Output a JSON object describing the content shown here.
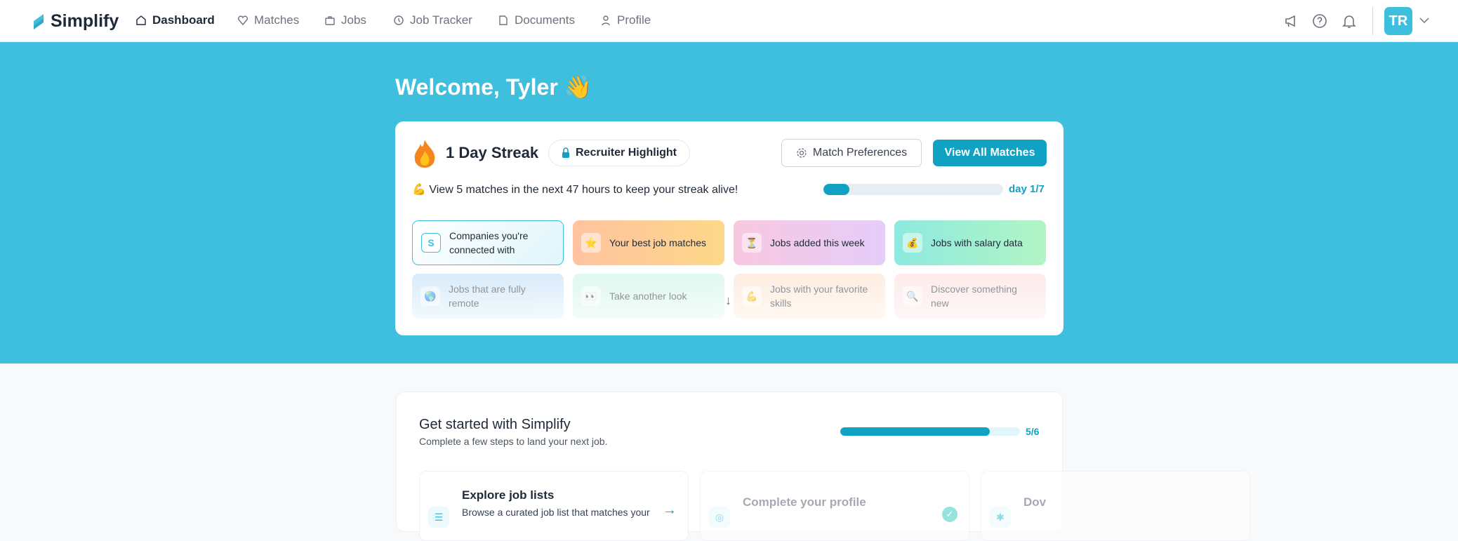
{
  "nav": {
    "brand": "Simplify",
    "items": [
      {
        "label": "Dashboard",
        "icon": "home-icon",
        "active": true
      },
      {
        "label": "Matches",
        "icon": "heart-icon"
      },
      {
        "label": "Jobs",
        "icon": "briefcase-icon"
      },
      {
        "label": "Job Tracker",
        "icon": "tracker-icon"
      },
      {
        "label": "Documents",
        "icon": "document-icon"
      },
      {
        "label": "Profile",
        "icon": "user-icon"
      }
    ],
    "avatar": "TR"
  },
  "hero": {
    "welcome": "Welcome, Tyler 👋"
  },
  "streak": {
    "title": "1 Day Streak",
    "pill": "Recruiter Highlight",
    "prefs": "Match Preferences",
    "view_all": "View All Matches",
    "message": "💪 View 5 matches in the next 47 hours to keep your streak alive!",
    "progress": 1,
    "progress_total": 7,
    "day_label": "day 1/7"
  },
  "tiles": [
    {
      "label": "Companies you're connected with",
      "icon": "simplify-icon"
    },
    {
      "label": "Your best job matches",
      "icon": "⭐"
    },
    {
      "label": "Jobs added this week",
      "icon": "⏳"
    },
    {
      "label": "Jobs with salary data",
      "icon": "💰"
    },
    {
      "label": "Jobs that are fully remote",
      "icon": "🌎"
    },
    {
      "label": "Take another look",
      "icon": "👀"
    },
    {
      "label": "Jobs with your favorite skills",
      "icon": "💪"
    },
    {
      "label": "Discover something new",
      "icon": "🔍"
    }
  ],
  "get_started": {
    "title": "Get started with Simplify",
    "subtitle": "Complete a few steps to land your next job.",
    "done": 5,
    "total": 6,
    "progress_label": "5/6",
    "steps": [
      {
        "title": "Explore job lists",
        "desc": "Browse a curated job list that matches your"
      },
      {
        "title": "Complete your profile",
        "completed": true
      },
      {
        "title": "Dov"
      }
    ]
  },
  "colors": {
    "accent": "#11a2c3",
    "hero": "#3fbfde"
  }
}
